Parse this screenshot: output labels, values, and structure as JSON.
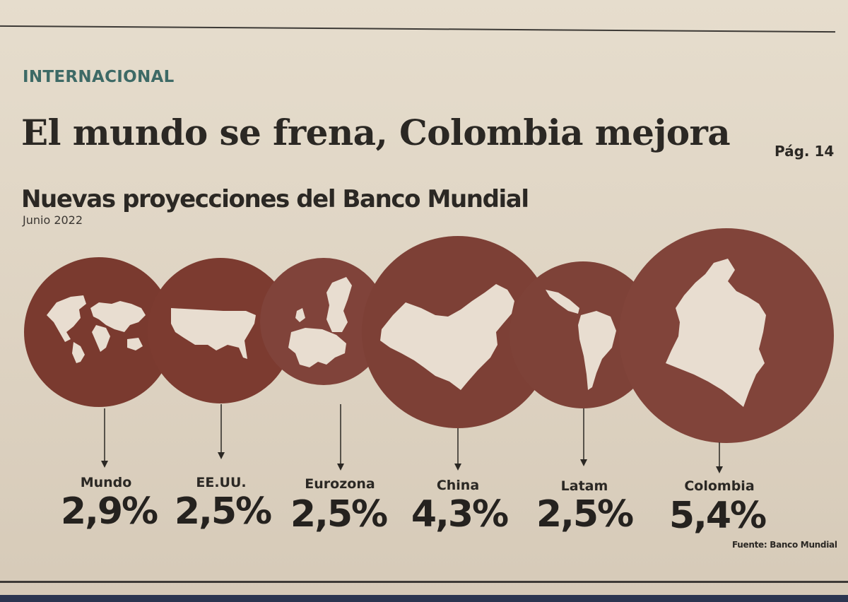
{
  "section": "INTERNACIONAL",
  "headline": "El mundo se frena, Colombia mejora",
  "page_ref": "Pág. 14",
  "subtitle": "Nuevas proyecciones del Banco Mundial",
  "date": "Junio 2022",
  "source": "Fuente: Banco Mundial",
  "colors": {
    "circle": "#7e3e32",
    "shape": "#e8ddd0",
    "section": "#3d6a66"
  },
  "items": [
    {
      "label": "Mundo",
      "value": "2,9%",
      "icon": "world-map-icon"
    },
    {
      "label": "EE.UU.",
      "value": "2,5%",
      "icon": "usa-map-icon"
    },
    {
      "label": "Eurozona",
      "value": "2,5%",
      "icon": "europe-map-icon"
    },
    {
      "label": "China",
      "value": "4,3%",
      "icon": "china-map-icon"
    },
    {
      "label": "Latam",
      "value": "2,5%",
      "icon": "latam-map-icon"
    },
    {
      "label": "Colombia",
      "value": "5,4%",
      "icon": "colombia-map-icon"
    }
  ]
}
